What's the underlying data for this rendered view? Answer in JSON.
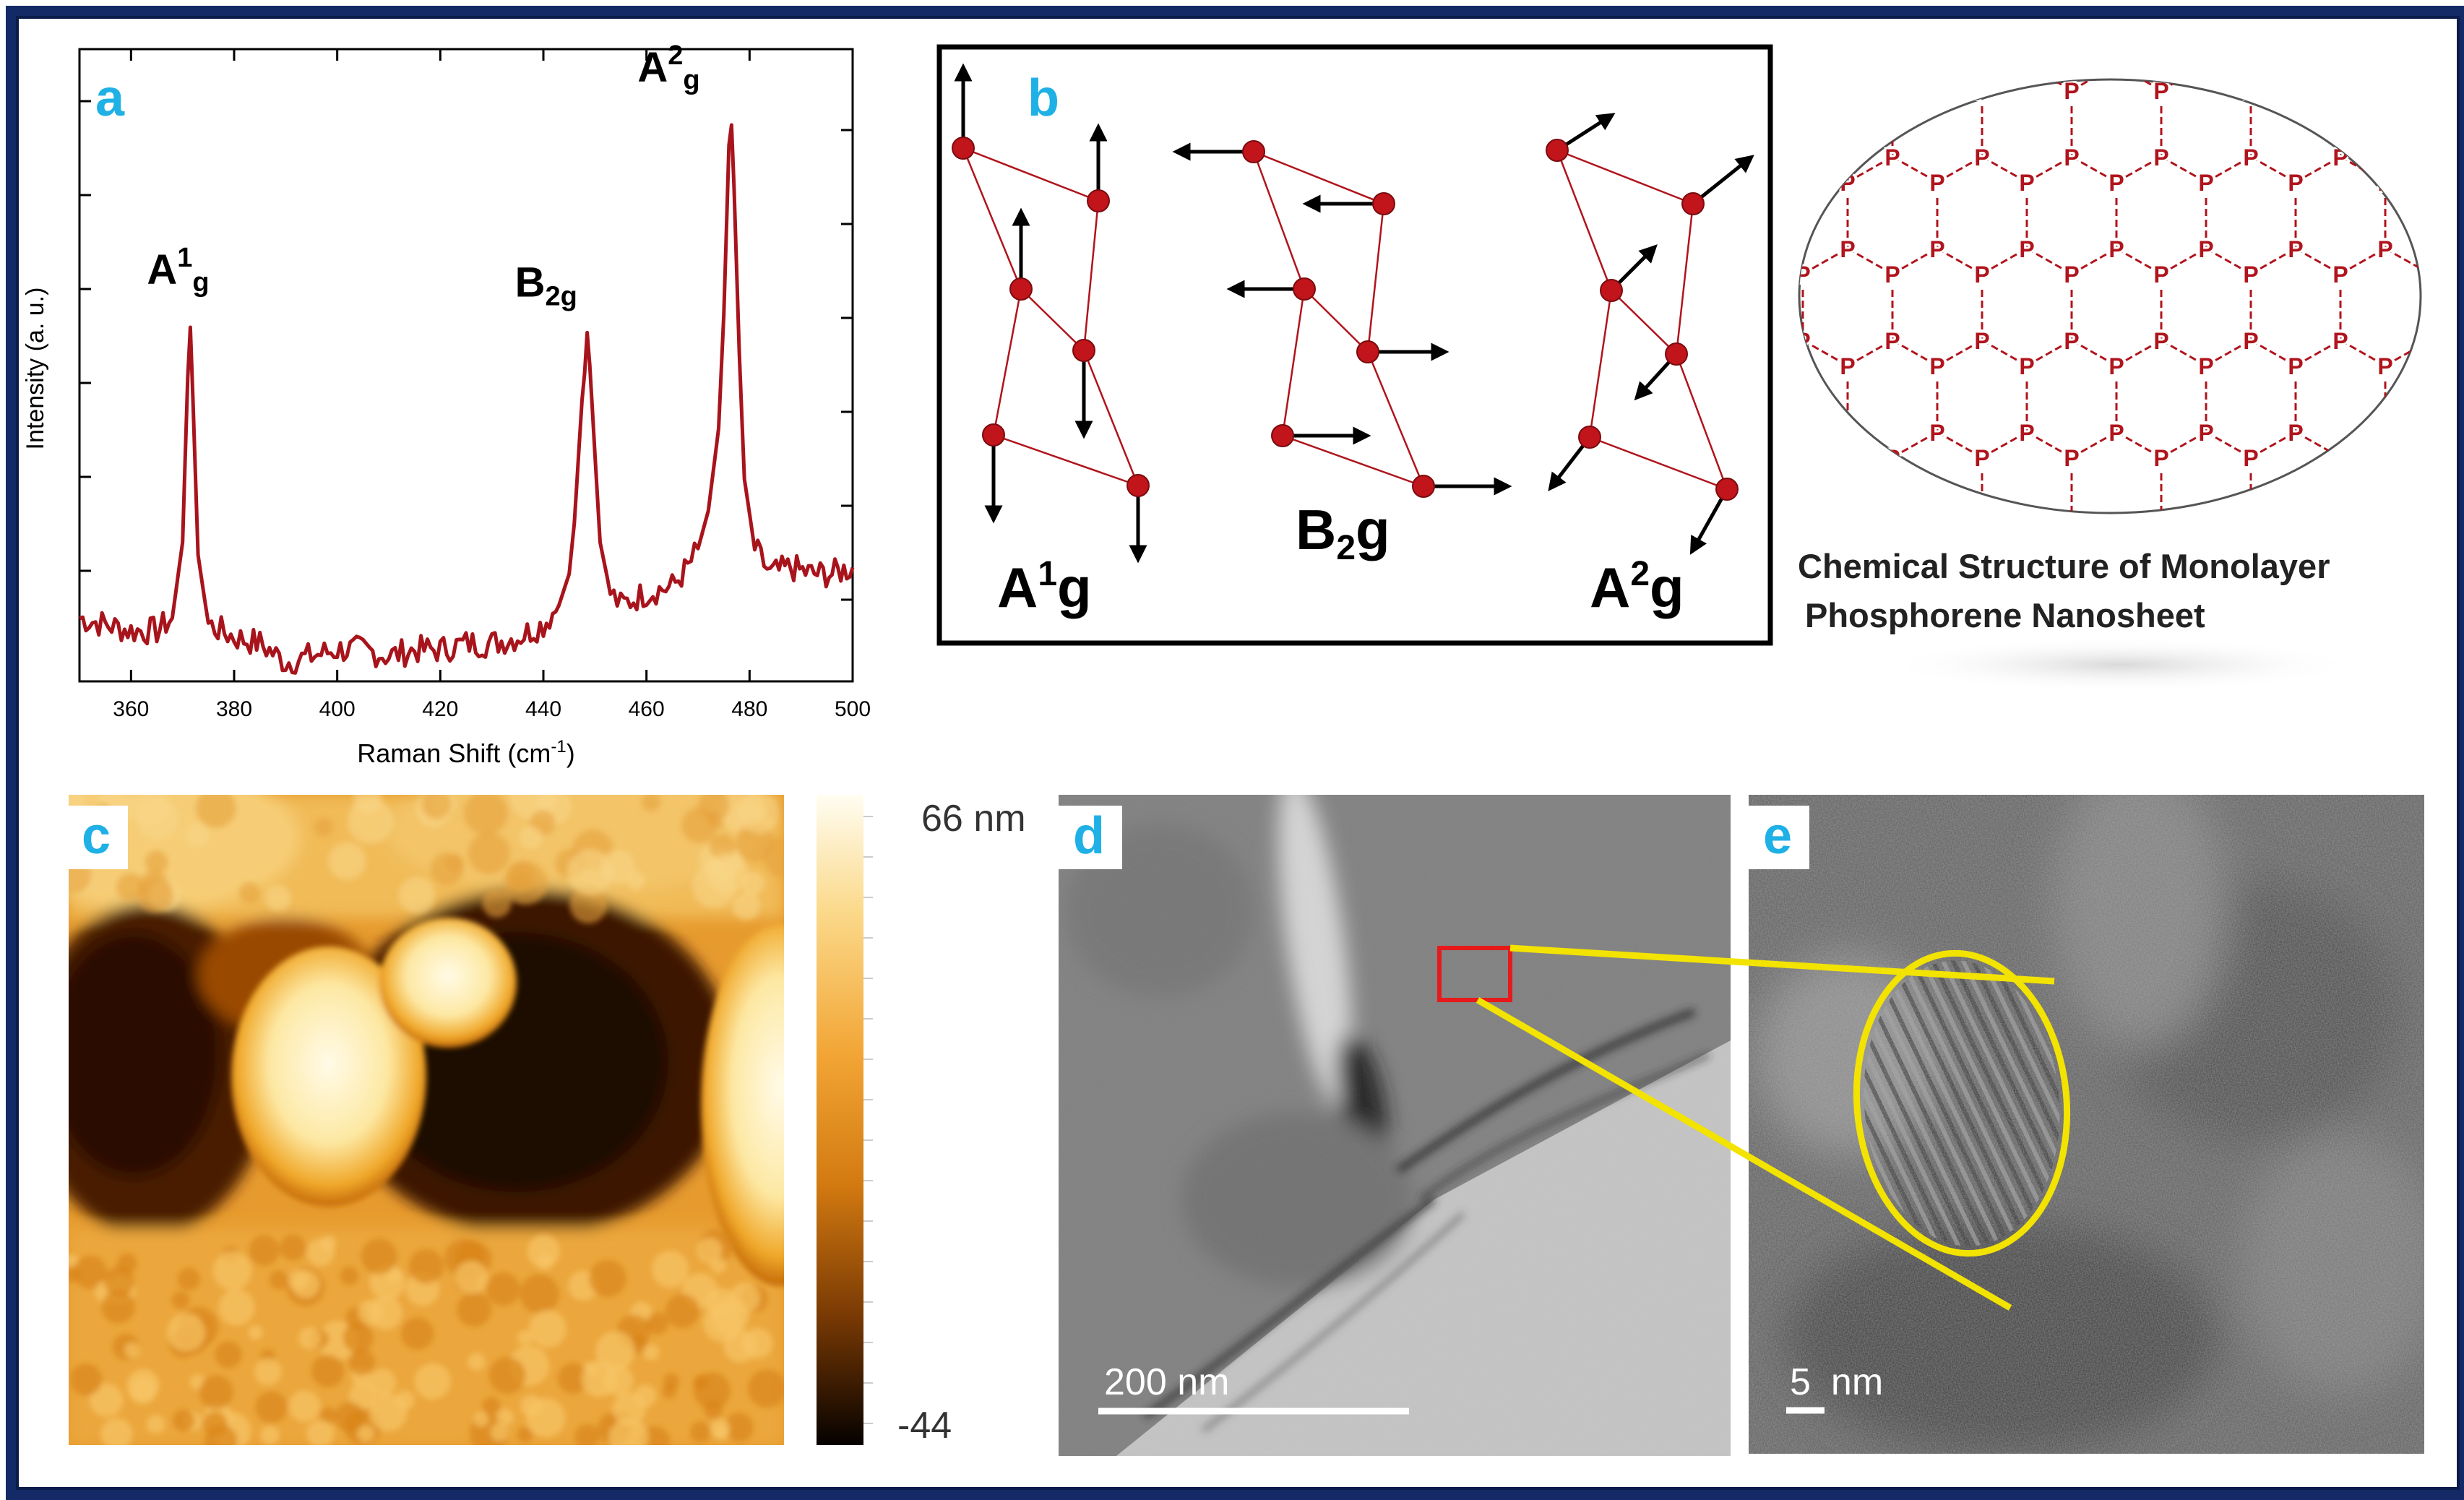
{
  "panels": {
    "a": {
      "letter": "a",
      "xlabel": "Raman Shift (cm",
      "xlabel_sup": "-1",
      "xlabel_end": ")",
      "ylabel": "Intensity (a. u.)",
      "xticks": [
        "360",
        "380",
        "400",
        "420",
        "440",
        "460",
        "480",
        "500"
      ],
      "peaks": [
        {
          "main": "A",
          "sup": "1",
          "sub": "g",
          "x": 371.5
        },
        {
          "main": "B",
          "sup": "",
          "sub": "2g",
          "x": 448.5
        },
        {
          "main": "A",
          "sup": "2",
          "sub": "g",
          "x": 476.5
        }
      ]
    },
    "b": {
      "letter": "b",
      "mode_labels": [
        {
          "main": "A",
          "sup": "1",
          "sub": "",
          "tail": "g"
        },
        {
          "main": "B",
          "sup": "",
          "sub": "2",
          "tail": "g"
        },
        {
          "main": "A",
          "sup": "2",
          "sub": "",
          "tail": "g"
        }
      ]
    },
    "structure": {
      "caption_line1": "Chemical Structure of Monolayer",
      "caption_line2": "Phosphorene Nanosheet",
      "atom_label": "P"
    },
    "c": {
      "letter": "c",
      "scale_max": "66 nm",
      "scale_min": "-44"
    },
    "d": {
      "letter": "d",
      "scalebar": "200 nm"
    },
    "e": {
      "letter": "e",
      "scalebar_num": "5",
      "scalebar_unit": "nm"
    }
  },
  "chart_data": {
    "type": "line",
    "title": "",
    "xlabel": "Raman Shift (cm-1)",
    "ylabel": "Intensity (a. u.)",
    "xlim": [
      350,
      500
    ],
    "series": [
      {
        "x": [
          350,
          355,
          360,
          365,
          368,
          370,
          371,
          371.5,
          372,
          373,
          375,
          380,
          385,
          390,
          395,
          400,
          405,
          410,
          415,
          420,
          425,
          430,
          435,
          440,
          443,
          445,
          446,
          447,
          448,
          448.5,
          449,
          450,
          451,
          453,
          455,
          460,
          465,
          468,
          470,
          472,
          474,
          475,
          476,
          476.5,
          477,
          478,
          479,
          481,
          484,
          488,
          492,
          496,
          500
        ],
        "y": [
          0.1,
          0.09,
          0.08,
          0.08,
          0.1,
          0.22,
          0.48,
          0.56,
          0.45,
          0.2,
          0.09,
          0.07,
          0.06,
          0.03,
          0.04,
          0.05,
          0.05,
          0.04,
          0.05,
          0.05,
          0.06,
          0.06,
          0.07,
          0.09,
          0.12,
          0.17,
          0.25,
          0.38,
          0.51,
          0.54,
          0.5,
          0.36,
          0.22,
          0.14,
          0.12,
          0.14,
          0.15,
          0.18,
          0.21,
          0.27,
          0.4,
          0.58,
          0.84,
          0.88,
          0.78,
          0.52,
          0.32,
          0.21,
          0.17,
          0.18,
          0.17,
          0.17,
          0.18
        ]
      }
    ]
  }
}
